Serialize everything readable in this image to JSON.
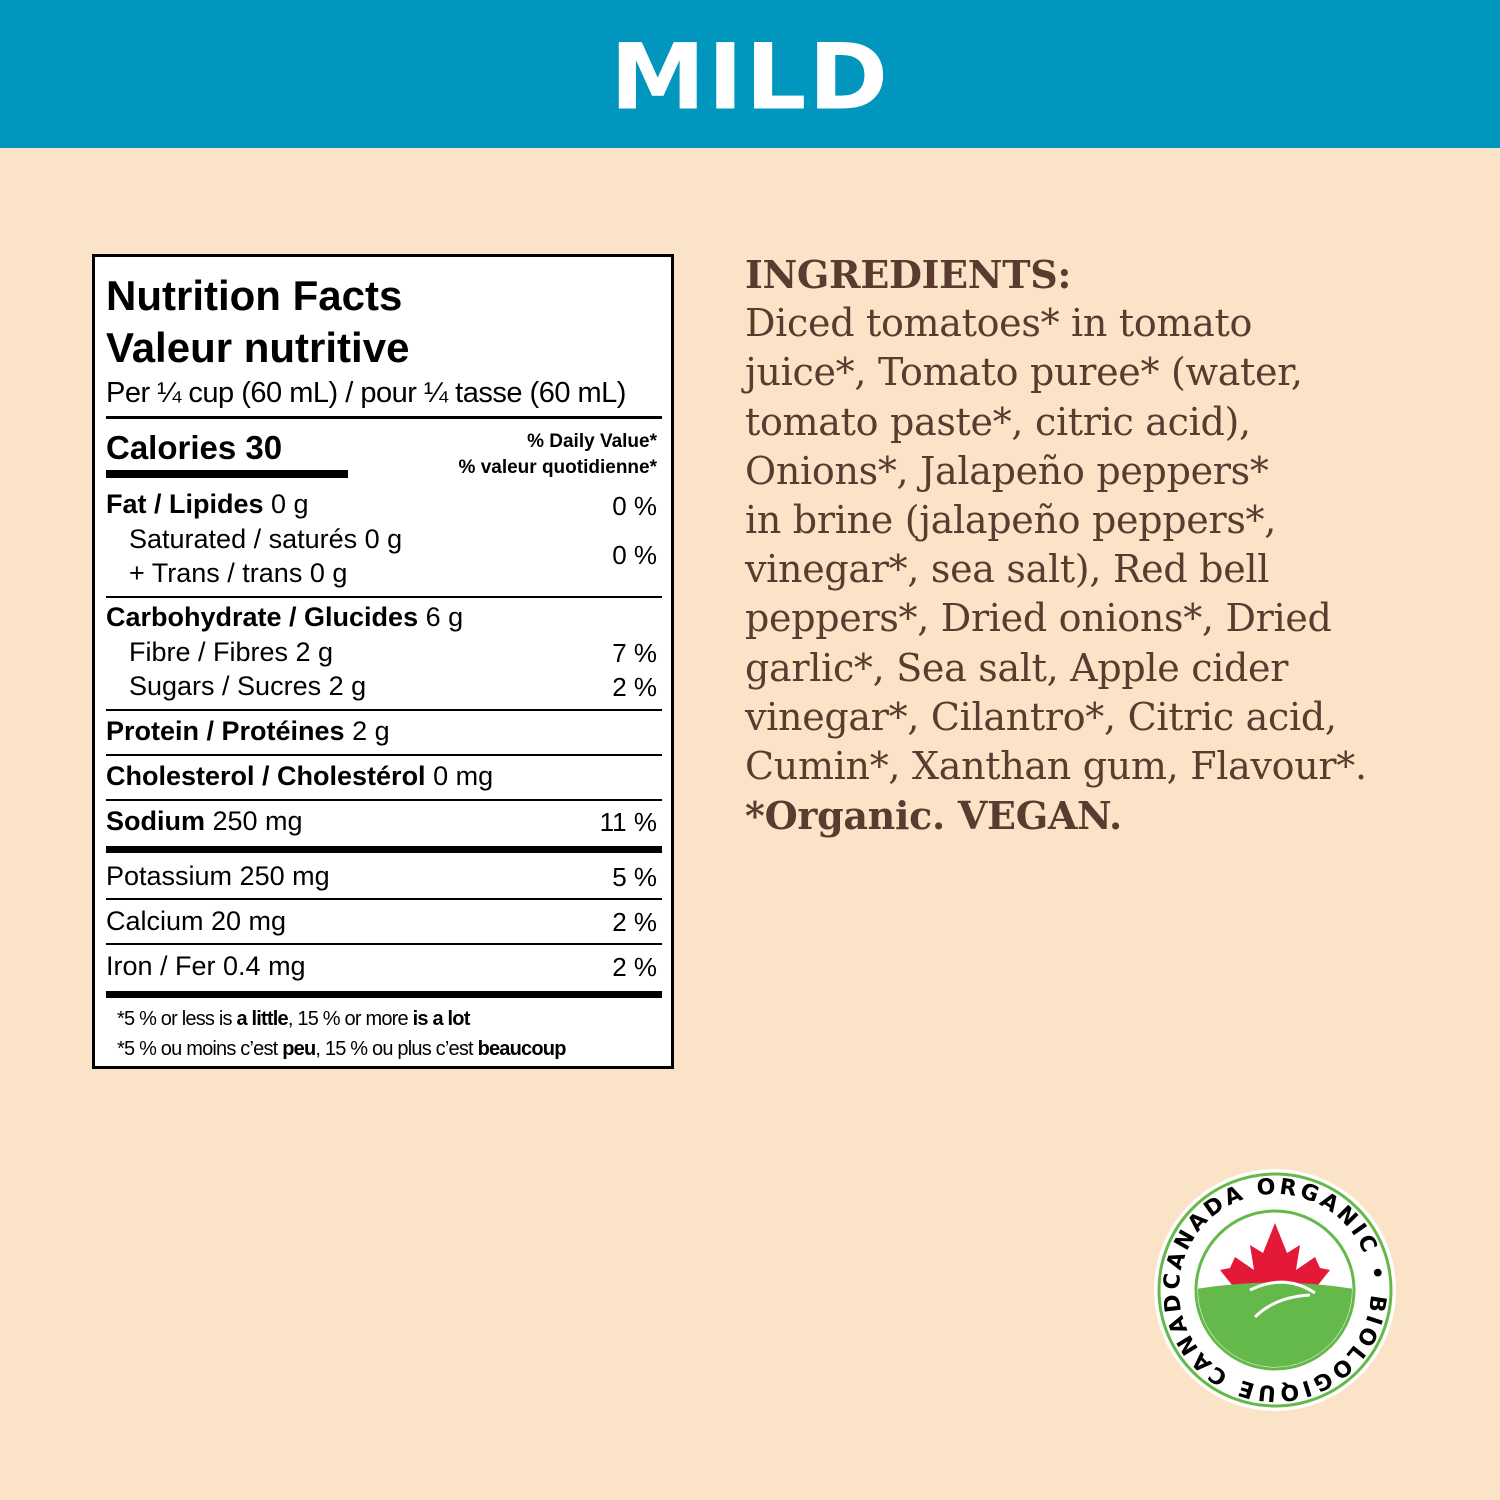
{
  "header": {
    "title": "MILD",
    "color": "#0096bd"
  },
  "nutrition": {
    "title_en": "Nutrition Facts",
    "title_fr": "Valeur nutritive",
    "serving": "Per ¼ cup (60 mL) / pour ¼ tasse (60 mL)",
    "calories": "Calories 30",
    "dv_en": "% Daily Value*",
    "dv_fr": "% valeur quotidienne*",
    "fat": {
      "label": "Fat / Lipides",
      "amount": " 0 g",
      "dv": "0 %"
    },
    "saturated": {
      "label": "Saturated / saturés 0 g"
    },
    "trans": {
      "label": "+ Trans / trans 0 g"
    },
    "sat_trans_dv": "0 %",
    "carb": {
      "label": "Carbohydrate / Glucides",
      "amount": " 6 g"
    },
    "fibre": {
      "label": "Fibre / Fibres 2 g",
      "dv": "7 %"
    },
    "sugars": {
      "label": "Sugars / Sucres 2 g",
      "dv": "2 %"
    },
    "protein": {
      "label": "Protein / Protéines",
      "amount": " 2 g"
    },
    "cholesterol": {
      "label": "Cholesterol / Cholestérol",
      "amount": " 0 mg"
    },
    "sodium": {
      "label": "Sodium",
      "amount": " 250 mg",
      "dv": "11 %"
    },
    "potassium": {
      "label": "Potassium 250 mg",
      "dv": "5 %"
    },
    "calcium": {
      "label": "Calcium 20 mg",
      "dv": "2 %"
    },
    "iron": {
      "label": "Iron / Fer 0.4 mg",
      "dv": "2 %"
    },
    "footnote_en": {
      "a": "*5 % or less is ",
      "b": "a little",
      "c": ", 15 % or more ",
      "d": "is a lot"
    },
    "footnote_fr": {
      "a": "*5 % ou moins c’est ",
      "b": "peu",
      "c": ", 15 % ou plus c’est ",
      "d": "beaucoup"
    }
  },
  "ingredients": {
    "heading": "INGREDIENTS:",
    "lines": [
      "Diced tomatoes* in tomato",
      "juice*, Tomato puree* (water,",
      "tomato paste*, citric acid),",
      "Onions*, Jalapeño peppers*",
      "in brine (jalapeño peppers*,",
      "vinegar*, sea salt), Red bell",
      "peppers*, Dried onions*, Dried",
      "garlic*, Sea salt, Apple cider",
      "vinegar*, Cilantro*, Citric acid,",
      "Cumin*, Xanthan gum, Flavour*."
    ],
    "footer": "*Organic. VEGAN.",
    "color": "#5b3a2f"
  },
  "logo": {
    "text_top": "CANADA ORGANIC • BIOLOGIQUE CANADA",
    "colors": {
      "leaf": "#e31937",
      "land": "#65b84a",
      "ring": "#65b84a"
    }
  }
}
